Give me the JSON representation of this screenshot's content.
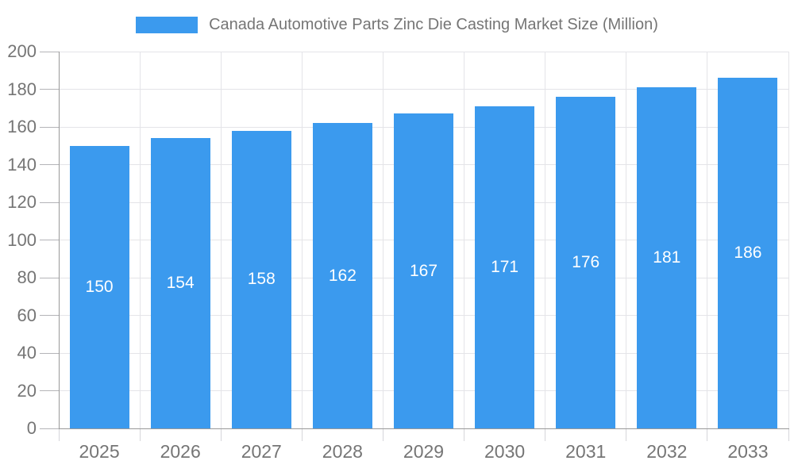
{
  "legend": {
    "position": "top",
    "swatch_color": "#3b9aee"
  },
  "chart_data": {
    "type": "bar",
    "title": "Canada Automotive Parts Zinc Die Casting Market Size (Million)",
    "categories": [
      "2025",
      "2026",
      "2027",
      "2028",
      "2029",
      "2030",
      "2031",
      "2032",
      "2033"
    ],
    "values": [
      150,
      154,
      158,
      162,
      167,
      171,
      176,
      181,
      186
    ],
    "xlabel": "",
    "ylabel": "",
    "ylim": [
      0,
      200
    ],
    "ytick_step": 20,
    "ytick_labels": [
      "0",
      "20",
      "40",
      "60",
      "80",
      "100",
      "120",
      "140",
      "160",
      "180",
      "200"
    ],
    "grid": true,
    "legend_position": "top",
    "bar_color": "#3b9aee",
    "value_label_color": "#ffffff",
    "axis_color": "#999999",
    "grid_color": "#e4e4e8",
    "tick_label_color": "#757575",
    "background_color": "#ffffff"
  }
}
